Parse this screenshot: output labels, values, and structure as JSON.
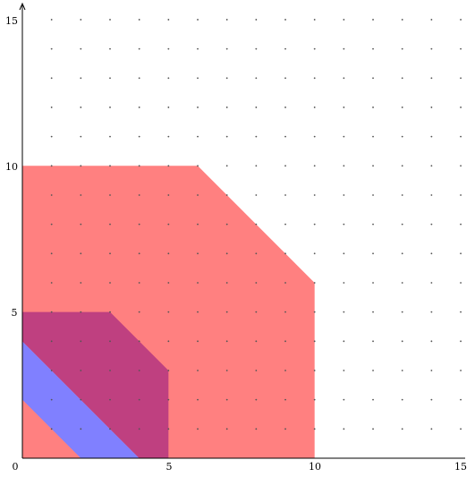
{
  "chart_data": {
    "type": "area",
    "xlim": [
      0,
      15
    ],
    "ylim": [
      0,
      15
    ],
    "x_ticks": [
      "0",
      "5",
      "10",
      "15"
    ],
    "y_ticks": [
      "5",
      "10",
      "15"
    ],
    "grid": "dots",
    "grid_step": 1,
    "regions": [
      {
        "color": "#ff8080",
        "points": [
          [
            0,
            0
          ],
          [
            0,
            10
          ],
          [
            6,
            10
          ],
          [
            10,
            6
          ],
          [
            10,
            0
          ]
        ]
      },
      {
        "color": "#8080ff",
        "points": [
          [
            0,
            2
          ],
          [
            0,
            4
          ],
          [
            4,
            0
          ],
          [
            2,
            0
          ]
        ]
      },
      {
        "color": "#bf4080",
        "points": [
          [
            0,
            4
          ],
          [
            0,
            5
          ],
          [
            3,
            5
          ],
          [
            5,
            3
          ],
          [
            5,
            0
          ],
          [
            4,
            0
          ]
        ]
      }
    ]
  }
}
